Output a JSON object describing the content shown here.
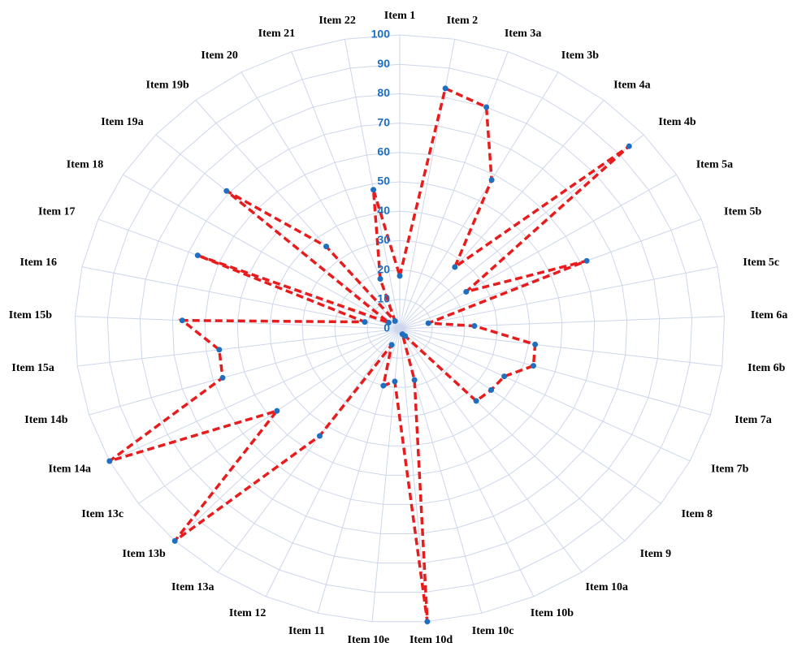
{
  "chart_data": {
    "type": "radar",
    "categories": [
      "Item 1",
      "Item 2",
      "Item 3a",
      "Item 3b",
      "Item 4a",
      "Item 4b",
      "Item 5a",
      "Item 5b",
      "Item 5c",
      "Item 6a",
      "Item 6b",
      "Item 7a",
      "Item 7b",
      "Item 8",
      "Item 9",
      "Item 10a",
      "Item 10b",
      "Item 10c",
      "Item 10d",
      "Item 10e",
      "Item 11",
      "Item 12",
      "Item 13a",
      "Item 13b",
      "Item 13c",
      "Item 14a",
      "Item 14b",
      "Item 15a",
      "Item 15b",
      "Item 16",
      "Item 17",
      "Item 18",
      "Item 19a",
      "Item 19b",
      "Item 20",
      "Item 21",
      "Item 22"
    ],
    "values": [
      18,
      83,
      80,
      58,
      27,
      94,
      24,
      62,
      9,
      23,
      42,
      43,
      36,
      35,
      34,
      3,
      2,
      18,
      100,
      18,
      20,
      6,
      44,
      100,
      47,
      100,
      57,
      56,
      67,
      11,
      67,
      4,
      71,
      36,
      3,
      18,
      48
    ],
    "color": "#e81c1c",
    "marker_color": "#1f6fc0",
    "ylim": [
      0,
      100
    ],
    "yticks": [
      0,
      10,
      20,
      30,
      40,
      50,
      60,
      70,
      80,
      90,
      100
    ],
    "grid": true
  }
}
